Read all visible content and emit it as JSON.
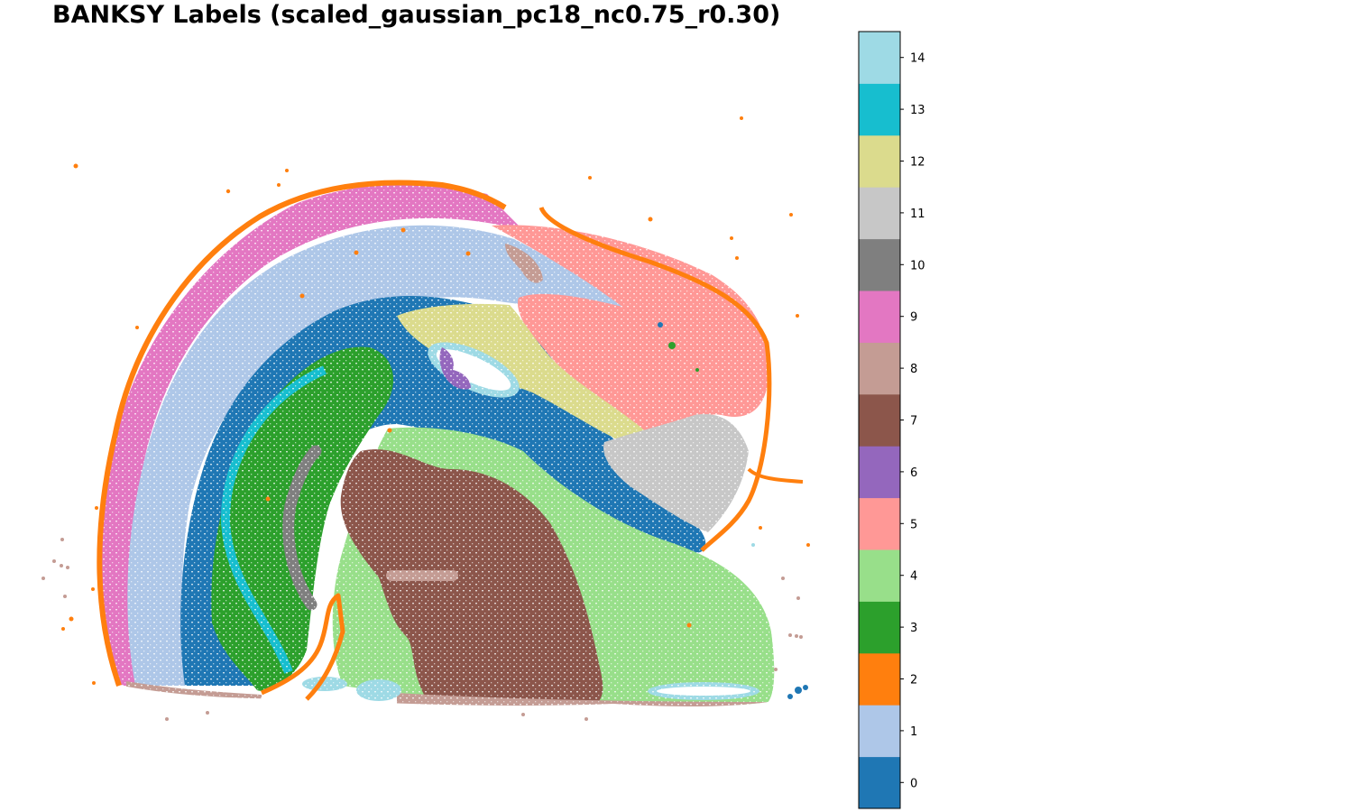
{
  "chart_data": {
    "type": "scatter",
    "title": "BANKSY Labels (scaled_gaussian_pc18_nc0.75_r0.30)",
    "xlabel": "",
    "ylabel": "",
    "axes_visible": false,
    "colorbar": {
      "position": "right",
      "ticks": [
        "0",
        "1",
        "2",
        "3",
        "4",
        "5",
        "6",
        "7",
        "8",
        "9",
        "10",
        "11",
        "12",
        "13",
        "14"
      ],
      "colors": [
        "#1f77b4",
        "#aec7e8",
        "#ff7f0e",
        "#2ca02c",
        "#98df8a",
        "#ff9896",
        "#9467bd",
        "#8c564b",
        "#c49c94",
        "#e377c2",
        "#7f7f7f",
        "#c7c7c7",
        "#dbdb8d",
        "#17becf",
        "#9edae5"
      ]
    },
    "clusters": [
      {
        "label": "0",
        "color": "#1f77b4"
      },
      {
        "label": "1",
        "color": "#aec7e8"
      },
      {
        "label": "2",
        "color": "#ff7f0e"
      },
      {
        "label": "3",
        "color": "#2ca02c"
      },
      {
        "label": "4",
        "color": "#98df8a"
      },
      {
        "label": "5",
        "color": "#ff9896"
      },
      {
        "label": "6",
        "color": "#9467bd"
      },
      {
        "label": "7",
        "color": "#8c564b"
      },
      {
        "label": "8",
        "color": "#c49c94"
      },
      {
        "label": "9",
        "color": "#e377c2"
      },
      {
        "label": "10",
        "color": "#7f7f7f"
      },
      {
        "label": "11",
        "color": "#c7c7c7"
      },
      {
        "label": "12",
        "color": "#dbdb8d"
      },
      {
        "label": "13",
        "color": "#17becf"
      },
      {
        "label": "14",
        "color": "#9edae5"
      }
    ]
  }
}
